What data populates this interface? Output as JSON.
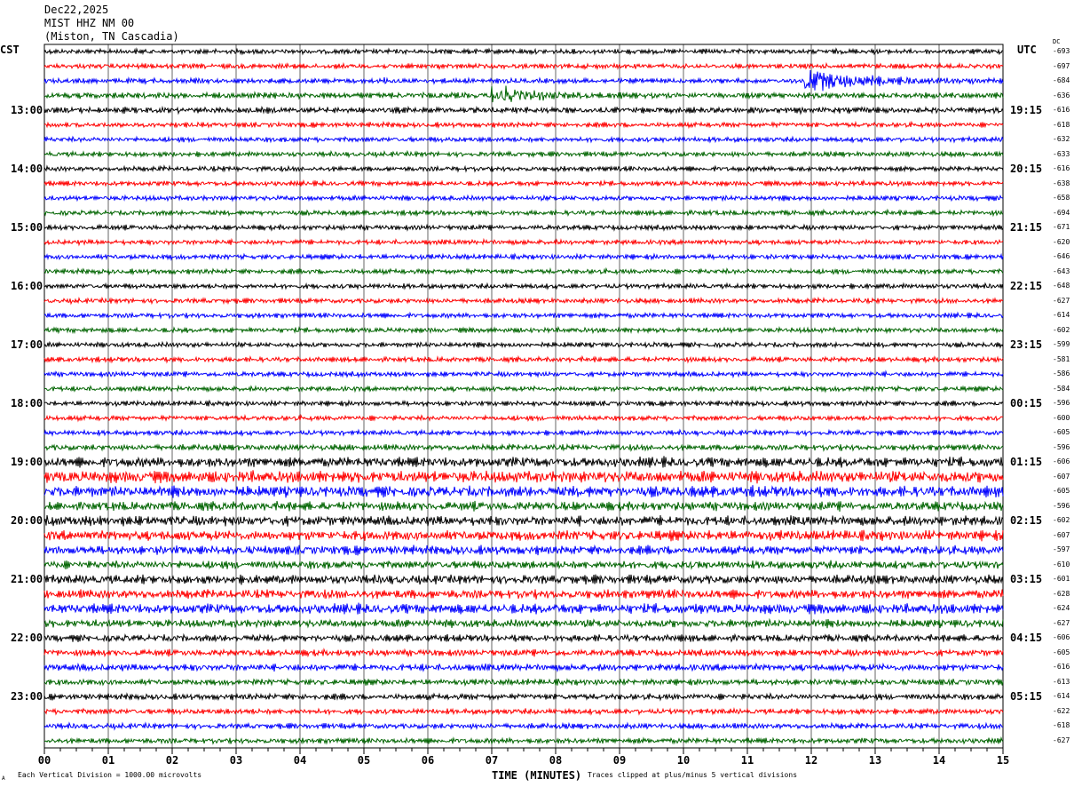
{
  "header": {
    "date": "Dec22,2025",
    "station": "MIST HHZ NM 00",
    "location": "(Miston, TN Cascadia)"
  },
  "left_timezone": "CST",
  "right_timezone": "UTC",
  "dc_label": "DC",
  "footer": {
    "scale_note": "Each Vertical Division = 1000.00 microvolts",
    "xlabel": "TIME (MINUTES)",
    "clip_note": "Traces clipped at plus/minus 5 vertical divisions",
    "corner_mark": "A"
  },
  "chart_data": {
    "type": "line",
    "xlabel": "TIME (MINUTES)",
    "xlim": [
      0,
      15
    ],
    "x_ticks": [
      "00",
      "01",
      "02",
      "03",
      "04",
      "05",
      "06",
      "07",
      "08",
      "09",
      "10",
      "11",
      "12",
      "13",
      "14",
      "15"
    ],
    "trace_colors": [
      "#000000",
      "#ff0000",
      "#0000ff",
      "#006400"
    ],
    "grid": "vertical lines every minute",
    "left_hour_labels": [
      "13:00",
      "14:00",
      "15:00",
      "16:00",
      "17:00",
      "18:00",
      "19:00",
      "20:00",
      "21:00",
      "22:00",
      "23:00"
    ],
    "right_hour_labels": [
      "19:15",
      "20:15",
      "21:15",
      "22:15",
      "23:15",
      "00:15",
      "01:15",
      "02:15",
      "03:15",
      "04:15",
      "05:15"
    ],
    "dc_offsets": [
      -693,
      -697,
      -684,
      -636,
      -616,
      -618,
      -632,
      -633,
      -616,
      -638,
      -658,
      -694,
      -671,
      -620,
      -646,
      -643,
      -648,
      -627,
      -614,
      -602,
      -599,
      -581,
      -586,
      -584,
      -596,
      -600,
      -605,
      -596,
      -606,
      -607,
      -605,
      -596,
      -602,
      -607,
      -597,
      -610,
      -601,
      -628,
      -624,
      -627,
      -606,
      -605,
      -616,
      -613,
      -614,
      -622,
      -618,
      -627
    ],
    "relative_noise_level": [
      1,
      1,
      1,
      1.2,
      1.2,
      1,
      1,
      1,
      1,
      1,
      1,
      1,
      1,
      1,
      1,
      1,
      1,
      1,
      1,
      1,
      1,
      1,
      1,
      1,
      1,
      1,
      1,
      1.2,
      2,
      2.4,
      2.2,
      1.8,
      2,
      2,
      1.8,
      1.6,
      1.8,
      1.8,
      2,
      1.6,
      1.4,
      1.3,
      1.4,
      1.2,
      1.2,
      1.1,
      1.1,
      1.1
    ],
    "events": [
      {
        "trace": 2,
        "start_min": 11.9,
        "end_min": 14.6,
        "amplitude": 5
      },
      {
        "trace": 3,
        "start_min": 7.0,
        "end_min": 8.5,
        "amplitude": 4
      },
      {
        "trace": 2,
        "start_min": 5.3,
        "end_min": 5.5,
        "amplitude": 2
      }
    ]
  }
}
